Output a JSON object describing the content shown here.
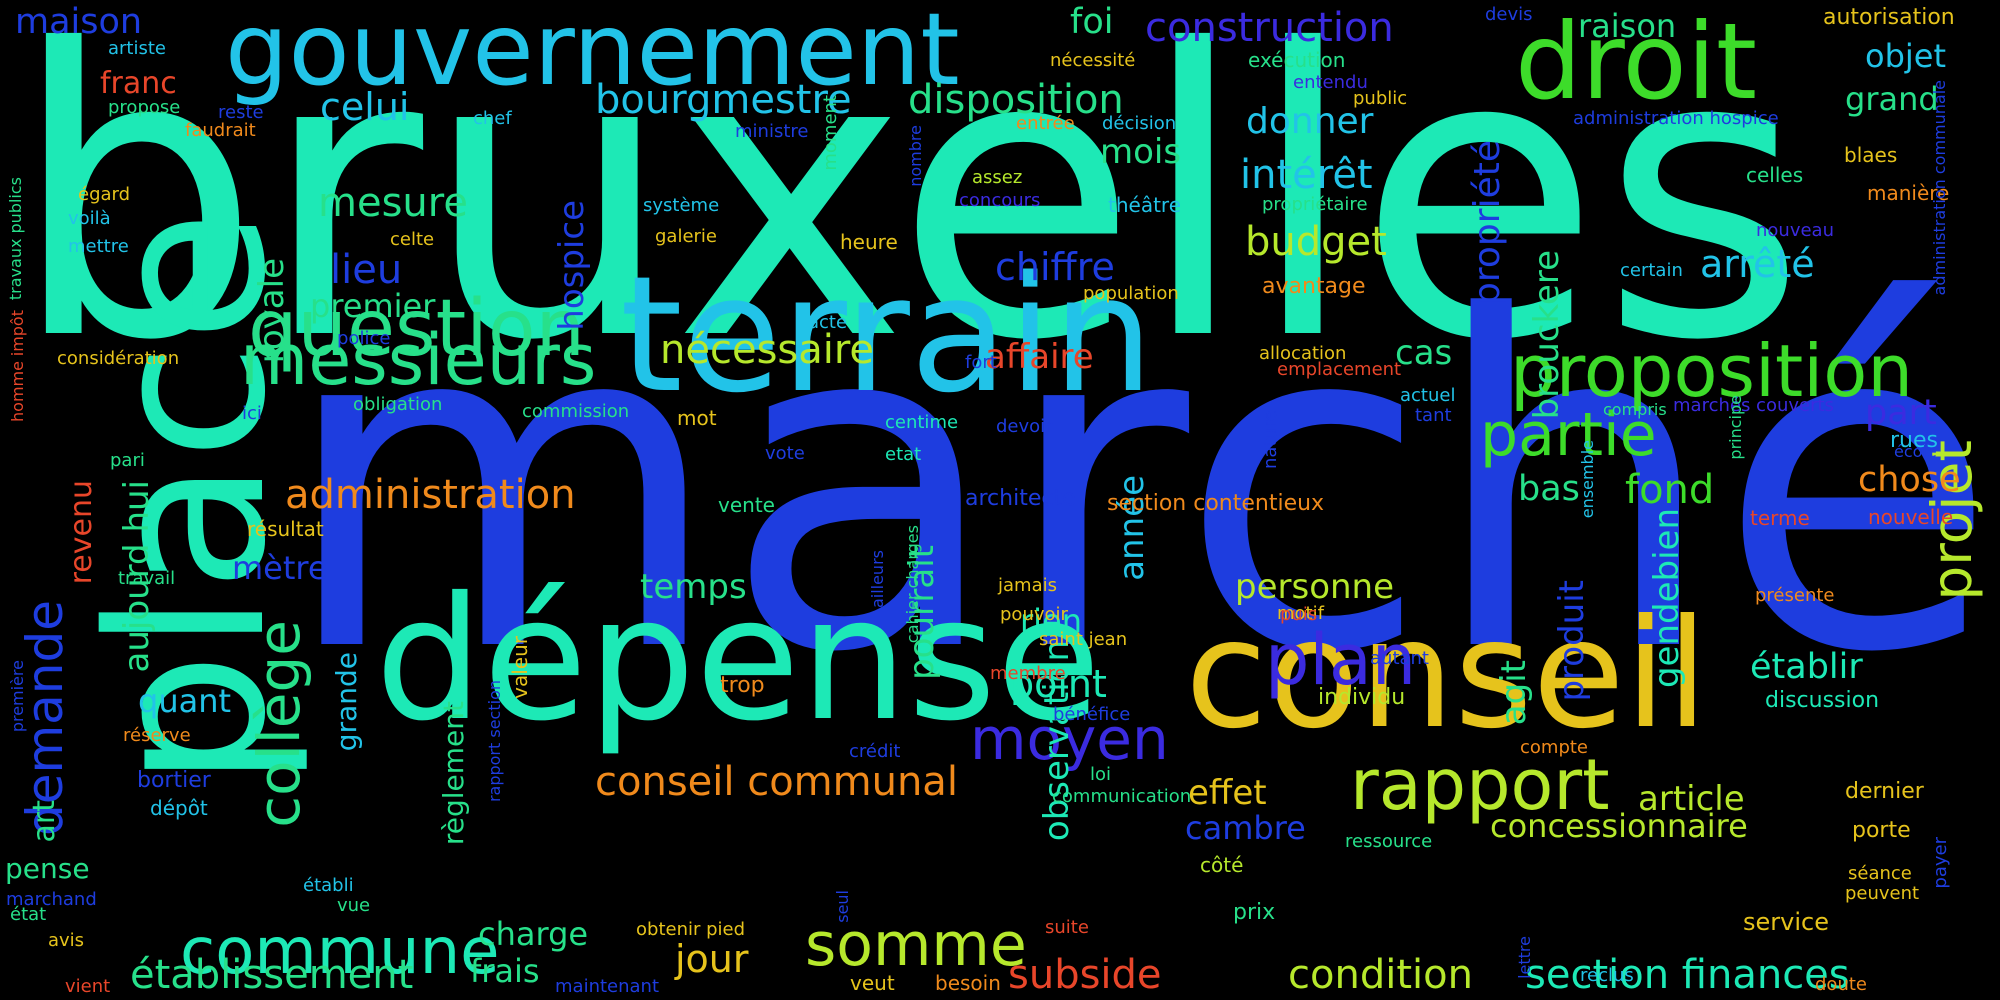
{
  "background": "#000000",
  "palette": {
    "teal": "#1de9b6",
    "sky": "#22c3e8",
    "blue": "#1e3ddf",
    "indigo": "#3b2be0",
    "green": "#3ddc2a",
    "lime": "#b6e82c",
    "yellow": "#e6c31c",
    "orange": "#f08a1c",
    "red": "#e8462a",
    "seafoam": "#27e08a"
  },
  "words": [
    {
      "text": "bruxelles",
      "color": "teal"
    },
    {
      "text": "marché",
      "color": "blue"
    },
    {
      "text": "place",
      "color": "teal"
    },
    {
      "text": "terrain",
      "color": "sky"
    },
    {
      "text": "dépense",
      "color": "teal"
    },
    {
      "text": "conseil",
      "color": "yellow"
    },
    {
      "text": "gouvernement",
      "color": "sky"
    },
    {
      "text": "droit",
      "color": "green"
    },
    {
      "text": "proposition",
      "color": "green"
    },
    {
      "text": "question",
      "color": "seafoam"
    },
    {
      "text": "messieurs",
      "color": "seafoam"
    },
    {
      "text": "rapport",
      "color": "lime"
    },
    {
      "text": "partie",
      "color": "green"
    },
    {
      "text": "plan",
      "color": "indigo"
    },
    {
      "text": "moyen",
      "color": "indigo"
    },
    {
      "text": "commune",
      "color": "teal"
    },
    {
      "text": "somme",
      "color": "lime"
    },
    {
      "text": "projet",
      "color": "lime"
    },
    {
      "text": "collège",
      "color": "seafoam"
    },
    {
      "text": "demande",
      "color": "blue"
    },
    {
      "text": "conseil communal",
      "color": "orange"
    },
    {
      "text": "bourgmestre",
      "color": "sky"
    },
    {
      "text": "construction",
      "color": "indigo"
    },
    {
      "text": "disposition",
      "color": "seafoam"
    },
    {
      "text": "établissement",
      "color": "seafoam"
    },
    {
      "text": "section finances",
      "color": "teal"
    },
    {
      "text": "condition",
      "color": "lime"
    },
    {
      "text": "subside",
      "color": "red"
    },
    {
      "text": "administration",
      "color": "orange"
    },
    {
      "text": "nécessaire",
      "color": "lime"
    },
    {
      "text": "concessionnaire",
      "color": "lime"
    },
    {
      "text": "budget",
      "color": "lime"
    },
    {
      "text": "intérêt",
      "color": "sky"
    },
    {
      "text": "propriété",
      "color": "blue"
    },
    {
      "text": "arrêté",
      "color": "sky"
    },
    {
      "text": "chiffre",
      "color": "blue"
    },
    {
      "text": "mesure",
      "color": "seafoam"
    },
    {
      "text": "personne",
      "color": "lime"
    },
    {
      "text": "article",
      "color": "lime"
    },
    {
      "text": "effet",
      "color": "yellow"
    },
    {
      "text": "point",
      "color": "teal"
    },
    {
      "text": "établir",
      "color": "teal"
    },
    {
      "text": "temps",
      "color": "seafoam"
    },
    {
      "text": "jour",
      "color": "yellow"
    },
    {
      "text": "frais",
      "color": "seafoam"
    },
    {
      "text": "charge",
      "color": "seafoam"
    },
    {
      "text": "fond",
      "color": "green"
    },
    {
      "text": "bas",
      "color": "seafoam"
    },
    {
      "text": "chose",
      "color": "orange"
    },
    {
      "text": "part",
      "color": "indigo"
    },
    {
      "text": "affaire",
      "color": "red"
    },
    {
      "text": "cas",
      "color": "seafoam"
    },
    {
      "text": "gendebien",
      "color": "teal"
    },
    {
      "text": "produit",
      "color": "blue"
    },
    {
      "text": "agit",
      "color": "seafoam"
    },
    {
      "text": "brouckere",
      "color": "seafoam"
    },
    {
      "text": "pourrait",
      "color": "seafoam"
    },
    {
      "text": "année",
      "color": "sky"
    },
    {
      "text": "observation",
      "color": "teal"
    },
    {
      "text": "aujourd hui",
      "color": "seafoam"
    },
    {
      "text": "royale",
      "color": "seafoam"
    },
    {
      "text": "hospice",
      "color": "blue"
    },
    {
      "text": "lieu",
      "color": "blue"
    },
    {
      "text": "premier",
      "color": "seafoam"
    },
    {
      "text": "celui",
      "color": "sky"
    },
    {
      "text": "foi",
      "color": "seafoam"
    },
    {
      "text": "mois",
      "color": "seafoam"
    },
    {
      "text": "donner",
      "color": "sky"
    },
    {
      "text": "raison",
      "color": "seafoam"
    },
    {
      "text": "objet",
      "color": "sky"
    },
    {
      "text": "grand",
      "color": "seafoam"
    },
    {
      "text": "maison",
      "color": "blue"
    },
    {
      "text": "franc",
      "color": "red"
    },
    {
      "text": "mètre",
      "color": "blue"
    },
    {
      "text": "quant",
      "color": "sky"
    },
    {
      "text": "rien",
      "color": "teal"
    },
    {
      "text": "cambre",
      "color": "blue"
    },
    {
      "text": "règlement",
      "color": "seafoam"
    },
    {
      "text": "grande",
      "color": "sky"
    },
    {
      "text": "revenu",
      "color": "red"
    },
    {
      "text": "art",
      "color": "seafoam"
    },
    {
      "text": "pense",
      "color": "seafoam"
    },
    {
      "text": "discussion",
      "color": "teal"
    },
    {
      "text": "dernier",
      "color": "yellow"
    },
    {
      "text": "porte",
      "color": "yellow"
    },
    {
      "text": "service",
      "color": "yellow"
    },
    {
      "text": "rues",
      "color": "sky"
    },
    {
      "text": "nouvelle",
      "color": "red"
    },
    {
      "text": "terme",
      "color": "red"
    },
    {
      "text": "prix",
      "color": "seafoam"
    },
    {
      "text": "architecte",
      "color": "blue"
    },
    {
      "text": "section contentieux",
      "color": "orange"
    },
    {
      "text": "résultat",
      "color": "yellow"
    },
    {
      "text": "vente",
      "color": "seafoam"
    },
    {
      "text": "mot",
      "color": "yellow"
    },
    {
      "text": "bortier",
      "color": "blue"
    },
    {
      "text": "dépôt",
      "color": "sky"
    },
    {
      "text": "trop",
      "color": "orange"
    },
    {
      "text": "individu",
      "color": "lime"
    },
    {
      "text": "côté",
      "color": "lime"
    },
    {
      "text": "besoin",
      "color": "orange"
    },
    {
      "text": "veut",
      "color": "yellow"
    },
    {
      "text": "avantage",
      "color": "orange"
    },
    {
      "text": "exécution",
      "color": "seafoam"
    },
    {
      "text": "autorisation",
      "color": "yellow"
    },
    {
      "text": "manière",
      "color": "orange"
    },
    {
      "text": "blaes",
      "color": "yellow"
    },
    {
      "text": "celles",
      "color": "seafoam"
    },
    {
      "text": "heure",
      "color": "yellow"
    },
    {
      "text": "galerie",
      "color": "yellow"
    },
    {
      "text": "théâtre",
      "color": "sky"
    },
    {
      "text": "moment",
      "color": "seafoam"
    },
    {
      "text": "nombre",
      "color": "blue"
    },
    {
      "text": "système",
      "color": "sky"
    },
    {
      "text": "concours",
      "color": "indigo"
    },
    {
      "text": "assez",
      "color": "lime"
    },
    {
      "text": "chef",
      "color": "sky"
    },
    {
      "text": "ministre",
      "color": "blue"
    },
    {
      "text": "public",
      "color": "yellow"
    },
    {
      "text": "entrée",
      "color": "orange"
    },
    {
      "text": "décision",
      "color": "sky"
    },
    {
      "text": "nécessité",
      "color": "yellow"
    },
    {
      "text": "entendu",
      "color": "indigo"
    },
    {
      "text": "devis",
      "color": "blue"
    },
    {
      "text": "administration hospice",
      "color": "blue"
    },
    {
      "text": "administration communale",
      "color": "blue"
    },
    {
      "text": "propriétaire",
      "color": "seafoam"
    },
    {
      "text": "population",
      "color": "yellow"
    },
    {
      "text": "allocation",
      "color": "yellow"
    },
    {
      "text": "emplacement",
      "color": "red"
    },
    {
      "text": "nouveau",
      "color": "indigo"
    },
    {
      "text": "certain",
      "color": "sky"
    },
    {
      "text": "actuel",
      "color": "sky"
    },
    {
      "text": "tant",
      "color": "blue"
    },
    {
      "text": "compris",
      "color": "seafoam"
    },
    {
      "text": "marchés couverts",
      "color": "indigo"
    },
    {
      "text": "école",
      "color": "blue"
    },
    {
      "text": "principe",
      "color": "seafoam"
    },
    {
      "text": "ensemble",
      "color": "sky"
    },
    {
      "text": "nature",
      "color": "blue"
    },
    {
      "text": "commission",
      "color": "seafoam"
    },
    {
      "text": "centime",
      "color": "teal"
    },
    {
      "text": "devoir",
      "color": "blue"
    },
    {
      "text": "etat",
      "color": "teal"
    },
    {
      "text": "vote",
      "color": "blue"
    },
    {
      "text": "fort",
      "color": "blue"
    },
    {
      "text": "acte",
      "color": "sky"
    },
    {
      "text": "obligation",
      "color": "seafoam"
    },
    {
      "text": "police",
      "color": "blue"
    },
    {
      "text": "ici",
      "color": "blue"
    },
    {
      "text": "pari",
      "color": "seafoam"
    },
    {
      "text": "considération",
      "color": "yellow"
    },
    {
      "text": "celte",
      "color": "yellow"
    },
    {
      "text": "égard",
      "color": "yellow"
    },
    {
      "text": "voilà",
      "color": "sky"
    },
    {
      "text": "mettre",
      "color": "sky"
    },
    {
      "text": "propose",
      "color": "seafoam"
    },
    {
      "text": "reste",
      "color": "blue"
    },
    {
      "text": "faudrait",
      "color": "orange"
    },
    {
      "text": "artiste",
      "color": "sky"
    },
    {
      "text": "travaux publics",
      "color": "seafoam"
    },
    {
      "text": "impôt",
      "color": "red"
    },
    {
      "text": "homme",
      "color": "red"
    },
    {
      "text": "travail",
      "color": "seafoam"
    },
    {
      "text": "première",
      "color": "blue"
    },
    {
      "text": "réserve",
      "color": "orange"
    },
    {
      "text": "marchand",
      "color": "blue"
    },
    {
      "text": "état",
      "color": "seafoam"
    },
    {
      "text": "avis",
      "color": "yellow"
    },
    {
      "text": "vient",
      "color": "red"
    },
    {
      "text": "établi",
      "color": "sky"
    },
    {
      "text": "vue",
      "color": "seafoam"
    },
    {
      "text": "maintenant",
      "color": "blue"
    },
    {
      "text": "seul",
      "color": "blue"
    },
    {
      "text": "obtenir pied",
      "color": "yellow"
    },
    {
      "text": "suite",
      "color": "red"
    },
    {
      "text": "communication",
      "color": "seafoam"
    },
    {
      "text": "loi",
      "color": "seafoam"
    },
    {
      "text": "crédit",
      "color": "blue"
    },
    {
      "text": "bénéfice",
      "color": "blue"
    },
    {
      "text": "membre",
      "color": "red"
    },
    {
      "text": "saint jean",
      "color": "yellow"
    },
    {
      "text": "jamais",
      "color": "yellow"
    },
    {
      "text": "pouvoir",
      "color": "yellow"
    },
    {
      "text": "motif",
      "color": "yellow"
    },
    {
      "text": "puis",
      "color": "red"
    },
    {
      "text": "autant",
      "color": "blue"
    },
    {
      "text": "compte",
      "color": "orange"
    },
    {
      "text": "présente",
      "color": "orange"
    },
    {
      "text": "ressource",
      "color": "seafoam"
    },
    {
      "text": "lettre",
      "color": "blue"
    },
    {
      "text": "reclus",
      "color": "sky"
    },
    {
      "text": "doute",
      "color": "orange"
    },
    {
      "text": "séance",
      "color": "yellow"
    },
    {
      "text": "peuvent",
      "color": "yellow"
    },
    {
      "text": "payer",
      "color": "blue"
    },
    {
      "text": "valeur",
      "color": "yellow"
    },
    {
      "text": "rapport section",
      "color": "blue"
    },
    {
      "text": "cahier charges",
      "color": "seafoam"
    },
    {
      "text": "ailleurs",
      "color": "blue"
    }
  ]
}
